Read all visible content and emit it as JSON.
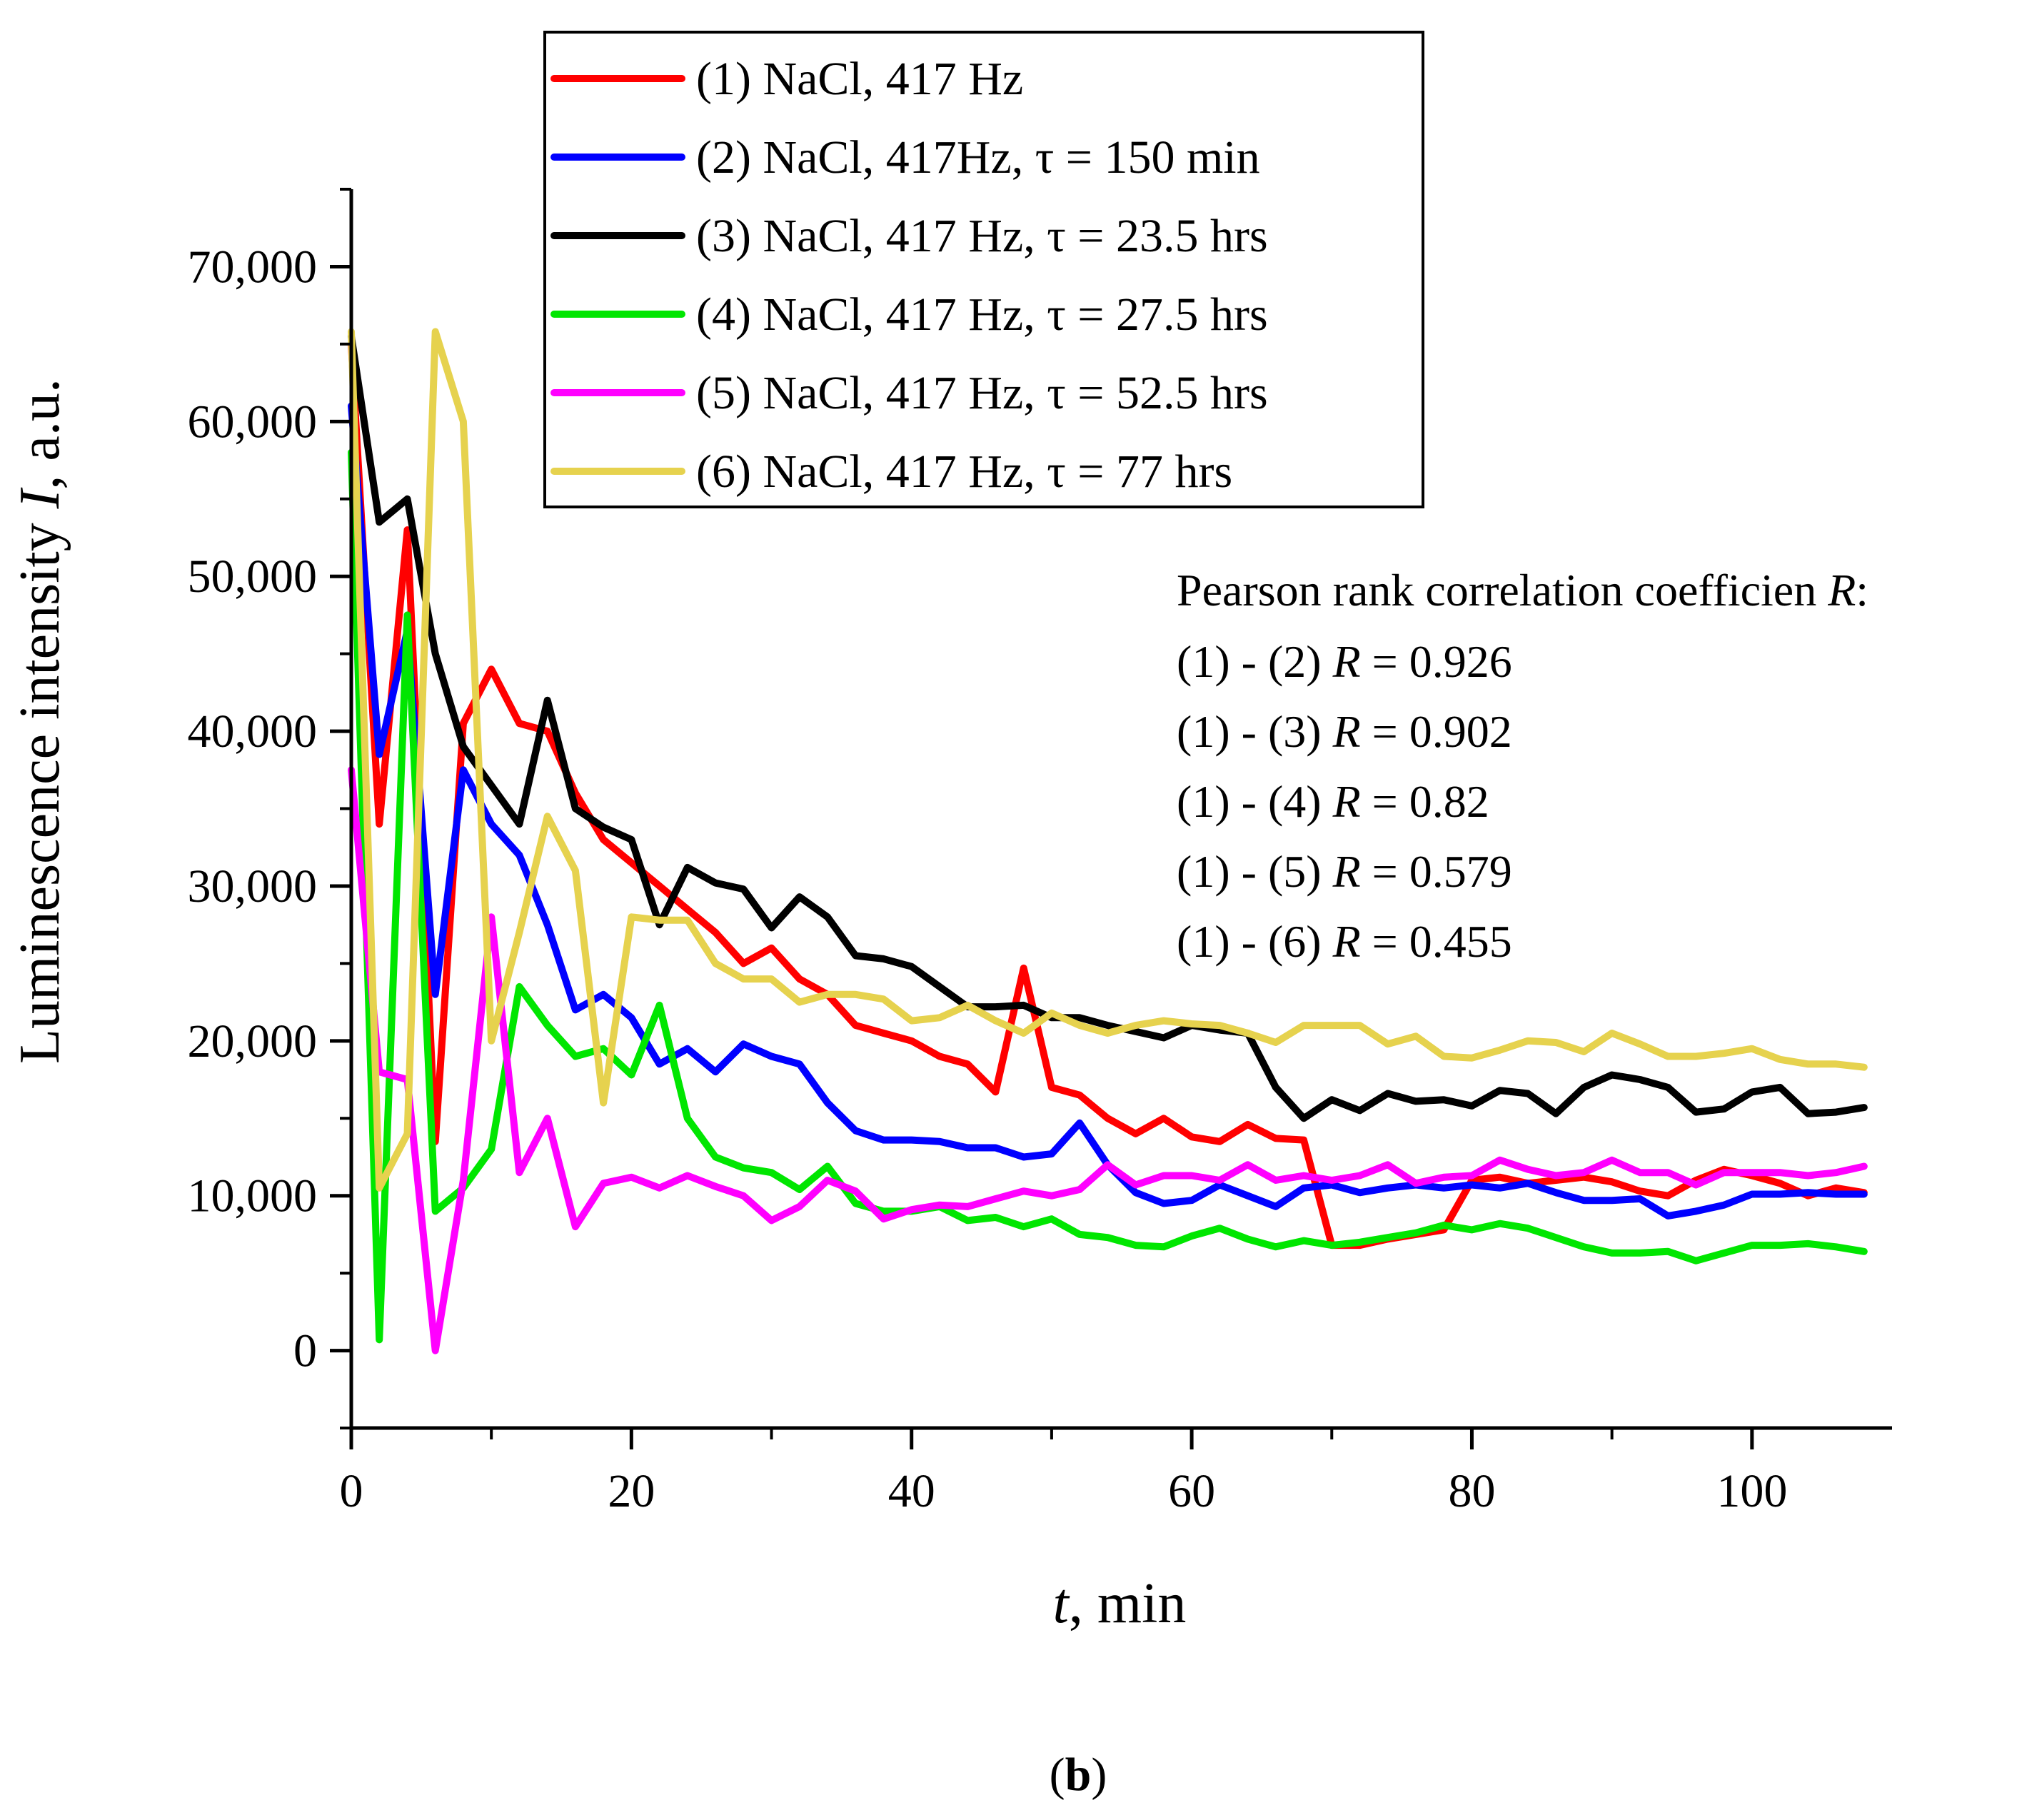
{
  "chart_data": {
    "type": "line",
    "xlabel_var": "t",
    "xlabel_unit": ", min",
    "ylabel_text": "Luminescence intensity ",
    "ylabel_var": "I",
    "ylabel_unit": ", a.u.",
    "xlim": [
      0,
      110
    ],
    "ylim": [
      -5000,
      75000
    ],
    "x_ticks": [
      0,
      20,
      40,
      60,
      80,
      100
    ],
    "x_tick_labels": [
      "0",
      "20",
      "40",
      "60",
      "80",
      "100"
    ],
    "y_ticks": [
      0,
      10000,
      20000,
      30000,
      40000,
      50000,
      60000,
      70000
    ],
    "y_tick_labels": [
      "0",
      "10,000",
      "20,000",
      "30,000",
      "40,000",
      "50,000",
      "60,000",
      "70,000"
    ],
    "grid": false,
    "legend_position": "top-center",
    "x": [
      0,
      2,
      4,
      6,
      8,
      10,
      12,
      14,
      16,
      18,
      20,
      22,
      24,
      26,
      28,
      30,
      32,
      34,
      36,
      38,
      40,
      42,
      44,
      46,
      48,
      50,
      52,
      54,
      56,
      58,
      60,
      62,
      64,
      66,
      68,
      70,
      72,
      74,
      76,
      78,
      80,
      82,
      84,
      86,
      88,
      90,
      92,
      94,
      96,
      98,
      100,
      102,
      104,
      106,
      108
    ],
    "series": [
      {
        "name": "(1) NaCl, 417 Hz",
        "color": "#ff0000",
        "values": [
          65000,
          34000,
          53000,
          13500,
          40500,
          44000,
          40500,
          40000,
          36000,
          33000,
          31500,
          30000,
          28500,
          27000,
          25000,
          26000,
          24000,
          23000,
          21000,
          20500,
          20000,
          19000,
          18500,
          16700,
          24700,
          17000,
          16500,
          15000,
          14000,
          15000,
          13800,
          13500,
          14600,
          13700,
          13600,
          6800,
          6800,
          7200,
          7500,
          7800,
          11000,
          11200,
          10800,
          11000,
          11200,
          10900,
          10300,
          10000,
          11000,
          11700,
          11300,
          10800,
          10000,
          10500,
          10200
        ]
      },
      {
        "name": "(2) NaCl, 417Hz, τ = 150 min",
        "color": "#0000ff",
        "values": [
          61000,
          38500,
          46500,
          23000,
          37500,
          34000,
          32000,
          27500,
          22000,
          23000,
          21500,
          18500,
          19500,
          18000,
          19800,
          19000,
          18500,
          16000,
          14200,
          13600,
          13600,
          13500,
          13100,
          13100,
          12500,
          12700,
          14700,
          12000,
          10200,
          9500,
          9700,
          10700,
          10000,
          9300,
          10500,
          10700,
          10200,
          10500,
          10700,
          10500,
          10700,
          10500,
          10800,
          10200,
          9700,
          9700,
          9800,
          8700,
          9000,
          9400,
          10100,
          10100,
          10200,
          10100,
          10100
        ]
      },
      {
        "name": "(3) NaCl, 417 Hz, τ = 23.5 hrs",
        "color": "#000000",
        "values": [
          65500,
          53500,
          55000,
          45000,
          39000,
          36500,
          34000,
          42000,
          35000,
          33800,
          33000,
          27500,
          31200,
          30200,
          29800,
          27300,
          29300,
          28000,
          25500,
          25300,
          24800,
          23500,
          22200,
          22200,
          22300,
          21500,
          21500,
          21000,
          20600,
          20200,
          21000,
          20700,
          20500,
          17000,
          15000,
          16200,
          15500,
          16600,
          16100,
          16200,
          15800,
          16800,
          16600,
          15300,
          17000,
          17800,
          17500,
          17000,
          15400,
          15600,
          16700,
          17000,
          15300,
          15400,
          15700
        ]
      },
      {
        "name": "(4) NaCl, 417 Hz, τ = 27.5 hrs",
        "color": "#00e600",
        "values": [
          58000,
          700,
          47500,
          9000,
          10500,
          13000,
          23500,
          21000,
          19000,
          19500,
          17800,
          22300,
          15000,
          12500,
          11800,
          11500,
          10400,
          11900,
          9500,
          9000,
          9000,
          9300,
          8400,
          8600,
          8000,
          8500,
          7500,
          7300,
          6800,
          6700,
          7400,
          7900,
          7200,
          6700,
          7100,
          6800,
          7000,
          7300,
          7600,
          8100,
          7800,
          8200,
          7900,
          7300,
          6700,
          6300,
          6300,
          6400,
          5800,
          6300,
          6800,
          6800,
          6900,
          6700,
          6400
        ]
      },
      {
        "name": "(5) NaCl, 417 Hz, τ = 52.5 hrs",
        "color": "#ff00ff",
        "values": [
          37500,
          18000,
          17500,
          0,
          11000,
          28000,
          11500,
          15000,
          8000,
          10800,
          11200,
          10500,
          11300,
          10600,
          10000,
          8400,
          9300,
          11000,
          10300,
          8500,
          9100,
          9400,
          9300,
          9800,
          10300,
          10000,
          10400,
          12000,
          10700,
          11300,
          11300,
          11000,
          12000,
          11000,
          11300,
          11000,
          11300,
          12000,
          10800,
          11200,
          11300,
          12300,
          11700,
          11300,
          11500,
          12300,
          11500,
          11500,
          10700,
          11500,
          11500,
          11500,
          11300,
          11500,
          11900
        ]
      },
      {
        "name": "(6) NaCl, 417 Hz, τ = 77 hrs",
        "color": "#e6d24e",
        "values": [
          65800,
          10500,
          14000,
          65800,
          60000,
          20000,
          27000,
          34500,
          31000,
          16000,
          28000,
          27800,
          27800,
          25000,
          24000,
          24000,
          22500,
          23000,
          23000,
          22700,
          21300,
          21500,
          22300,
          21300,
          20500,
          21800,
          21000,
          20500,
          21000,
          21300,
          21100,
          21000,
          20500,
          19900,
          21000,
          21000,
          21000,
          19800,
          20300,
          19000,
          18900,
          19400,
          20000,
          19900,
          19300,
          20500,
          19800,
          19000,
          19000,
          19200,
          19500,
          18800,
          18500,
          18500,
          18300
        ]
      }
    ],
    "annotation": {
      "title_prefix": "Pearson rank correlation coefficien ",
      "title_var": "R",
      "title_suffix": ":",
      "lines": [
        {
          "pair": "(1) - (2) ",
          "var": "R",
          "value": " = 0.926"
        },
        {
          "pair": "(1) - (3) ",
          "var": "R",
          "value": " = 0.902"
        },
        {
          "pair": "(1) - (4) ",
          "var": "R",
          "value": " =  0.82"
        },
        {
          "pair": "(1) - (5) ",
          "var": "R",
          "value": " = 0.579"
        },
        {
          "pair": "(1) - (6) ",
          "var": "R",
          "value": " = 0.455"
        }
      ]
    },
    "caption": "b"
  }
}
